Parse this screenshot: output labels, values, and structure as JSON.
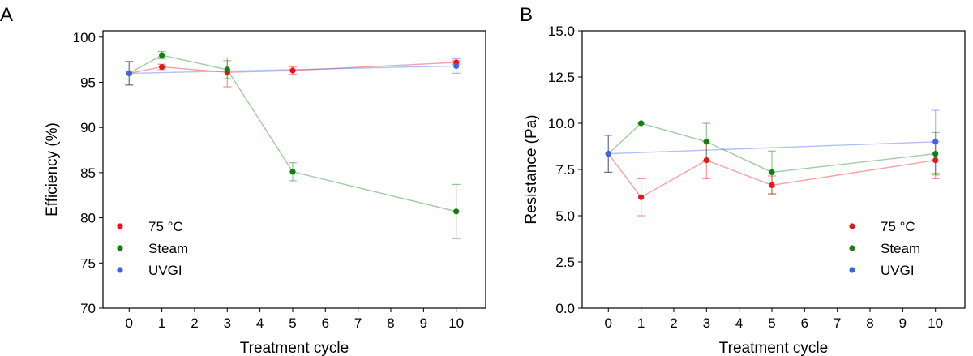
{
  "colors": {
    "series_75c": "#e8141a",
    "series_steam": "#118011",
    "series_uvgi": "#3c64e6"
  },
  "chart_data": [
    {
      "panel_label": "A",
      "type": "line",
      "xlabel": "Treatment cycle",
      "ylabel": "Efficiency (%)",
      "x_ticks": [
        0,
        1,
        2,
        3,
        4,
        5,
        6,
        7,
        8,
        9,
        10
      ],
      "xlim": [
        -0.8,
        10.9
      ],
      "ylim": [
        70,
        100.7
      ],
      "y_ticks": [
        70,
        75,
        80,
        85,
        90,
        95,
        100
      ],
      "y_tick_labels": [
        "70",
        "75",
        "80",
        "85",
        "90",
        "95",
        "100"
      ],
      "legend_position": "bottom-left",
      "series": [
        {
          "name": "75 °C",
          "color": "#e8141a",
          "points": [
            {
              "x": 0,
              "y": 96.0,
              "err": 1.3
            },
            {
              "x": 1,
              "y": 96.7,
              "err": 0.3
            },
            {
              "x": 3,
              "y": 96.1,
              "err": 1.6
            },
            {
              "x": 5,
              "y": 96.3,
              "err": 0.4
            },
            {
              "x": 10,
              "y": 97.2,
              "err": 0.2
            }
          ]
        },
        {
          "name": "Steam",
          "color": "#118011",
          "points": [
            {
              "x": 0,
              "y": 96.0,
              "err": 1.3
            },
            {
              "x": 1,
              "y": 98.0,
              "err": 0.4
            },
            {
              "x": 3,
              "y": 96.4,
              "err": 1.0
            },
            {
              "x": 5,
              "y": 85.1,
              "err": 1.0
            },
            {
              "x": 10,
              "y": 80.7,
              "err": 3.0
            }
          ]
        },
        {
          "name": "UVGI",
          "color": "#3c64e6",
          "points": [
            {
              "x": 0,
              "y": 96.0,
              "err": 1.3
            },
            {
              "x": 10,
              "y": 96.8,
              "err": 0.8
            }
          ]
        }
      ]
    },
    {
      "panel_label": "B",
      "type": "line",
      "xlabel": "Treatment cycle",
      "ylabel": "Resistance (Pa)",
      "x_ticks": [
        0,
        1,
        2,
        3,
        4,
        5,
        6,
        7,
        8,
        9,
        10
      ],
      "xlim": [
        -0.8,
        10.9
      ],
      "ylim": [
        0,
        15
      ],
      "y_ticks": [
        0,
        2.5,
        5,
        7.5,
        10,
        12.5,
        15
      ],
      "y_tick_labels": [
        "0.0",
        "2.5",
        "5.0",
        "7.5",
        "10.0",
        "12.5",
        "15.0"
      ],
      "legend_position": "bottom-right",
      "series": [
        {
          "name": "75 °C",
          "color": "#e8141a",
          "points": [
            {
              "x": 0,
              "y": 8.35,
              "err": 1.0
            },
            {
              "x": 1,
              "y": 6.0,
              "err": 1.0
            },
            {
              "x": 3,
              "y": 8.0,
              "err": 1.0
            },
            {
              "x": 5,
              "y": 6.65,
              "err": 0.5
            },
            {
              "x": 10,
              "y": 8.0,
              "err": 1.0
            }
          ]
        },
        {
          "name": "Steam",
          "color": "#118011",
          "points": [
            {
              "x": 0,
              "y": 8.35,
              "err": 1.0
            },
            {
              "x": 1,
              "y": 10.0,
              "err": 0.05
            },
            {
              "x": 3,
              "y": 9.0,
              "err": 1.0
            },
            {
              "x": 5,
              "y": 7.35,
              "err": 1.15
            },
            {
              "x": 10,
              "y": 8.35,
              "err": 1.15
            }
          ]
        },
        {
          "name": "UVGI",
          "color": "#3c64e6",
          "points": [
            {
              "x": 0,
              "y": 8.35,
              "err": 1.0
            },
            {
              "x": 10,
              "y": 9.0,
              "err": 1.7
            }
          ]
        }
      ]
    }
  ]
}
